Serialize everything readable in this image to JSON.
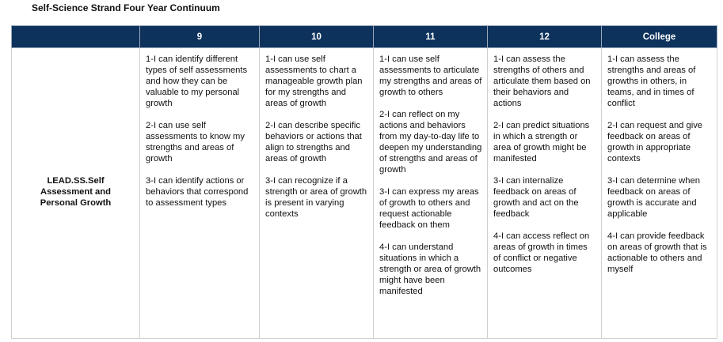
{
  "title": "Self-Science Strand Four Year Continuum",
  "columns": [
    "",
    "9",
    "10",
    "11",
    "12",
    "College"
  ],
  "row": {
    "label": "LEAD.SS.Self Assessment and Personal Growth",
    "cells": [
      [
        "1-I can identify different types of self assessments and how they can be valuable to my personal growth",
        "2-I can use self assessments to know my strengths and areas of growth",
        "3-I can identify actions or behaviors that correspond to assessment types"
      ],
      [
        "1-I can use self assessments to chart a manageable growth plan for my strengths and areas of growth",
        "2-I can describe specific behaviors or actions that align to strengths and areas of growth",
        "3-I can recognize if a strength or area of growth is present in varying contexts"
      ],
      [
        "1-I can use self assessments to articulate my strengths and areas of growth to others",
        "2-I can reflect on my actions and behaviors from my day-to-day life to deepen my understanding of strengths and areas of growth",
        "3-I can express my areas of growth to others and request actionable feedback on them",
        "4-I can understand situations in which a strength or area of growth might have been manifested"
      ],
      [
        "1-I can assess the strengths of others and articulate them based on their behaviors and actions",
        "2-I can predict situations in which a strength or area of growth might be manifested",
        "3-I can internalize feedback on areas of growth and act on the feedback",
        "4-I can access reflect on areas of growth in times of conflict or negative outcomes"
      ],
      [
        "1-I can assess the strengths and areas of growths in others, in teams, and in times of conflict",
        "2-I can request and give feedback on areas of growth in appropriate contexts",
        "3-I can determine when feedback on areas of growth is accurate and applicable",
        "4-I can provide feedback on areas of growth that is actionable to others and myself"
      ]
    ]
  }
}
